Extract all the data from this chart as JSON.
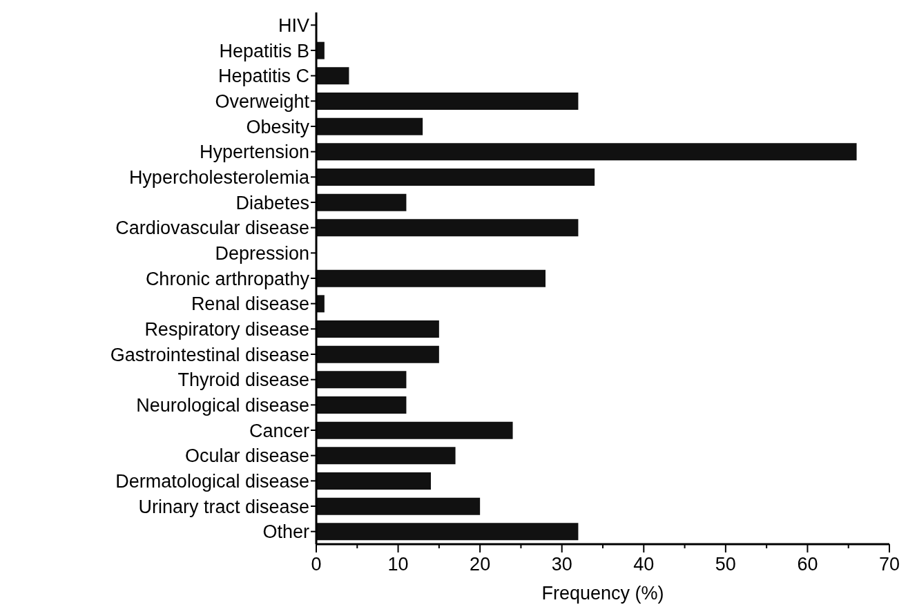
{
  "chart_data": {
    "type": "bar",
    "orientation": "horizontal",
    "xlabel": "Frequency (%)",
    "categories": [
      "HIV",
      "Hepatitis B",
      "Hepatitis C",
      "Overweight",
      "Obesity",
      "Hypertension",
      "Hypercholesterolemia",
      "Diabetes",
      "Cardiovascular disease",
      "Depression",
      "Chronic arthropathy",
      "Renal disease",
      "Respiratory disease",
      "Gastrointestinal disease",
      "Thyroid disease",
      "Neurological disease",
      "Cancer",
      "Ocular disease",
      "Dermatological disease",
      "Urinary tract disease",
      "Other"
    ],
    "values": [
      0,
      1,
      4,
      32,
      13,
      66,
      34,
      11,
      32,
      0,
      28,
      1,
      15,
      15,
      11,
      11,
      24,
      17,
      14,
      20,
      32
    ],
    "color": "#111111",
    "xlim": [
      0,
      70
    ],
    "xticks": [
      0,
      {
        "value": 5,
        "label": null
      },
      10,
      {
        "value": 15,
        "label": null
      },
      20,
      {
        "value": 25,
        "label": null
      },
      30,
      {
        "value": 35,
        "label": null
      },
      40,
      {
        "value": 45,
        "label": null
      },
      50,
      {
        "value": 55,
        "label": null
      },
      60,
      {
        "value": 65,
        "label": null
      },
      70
    ],
    "grid": false,
    "legend": false
  }
}
